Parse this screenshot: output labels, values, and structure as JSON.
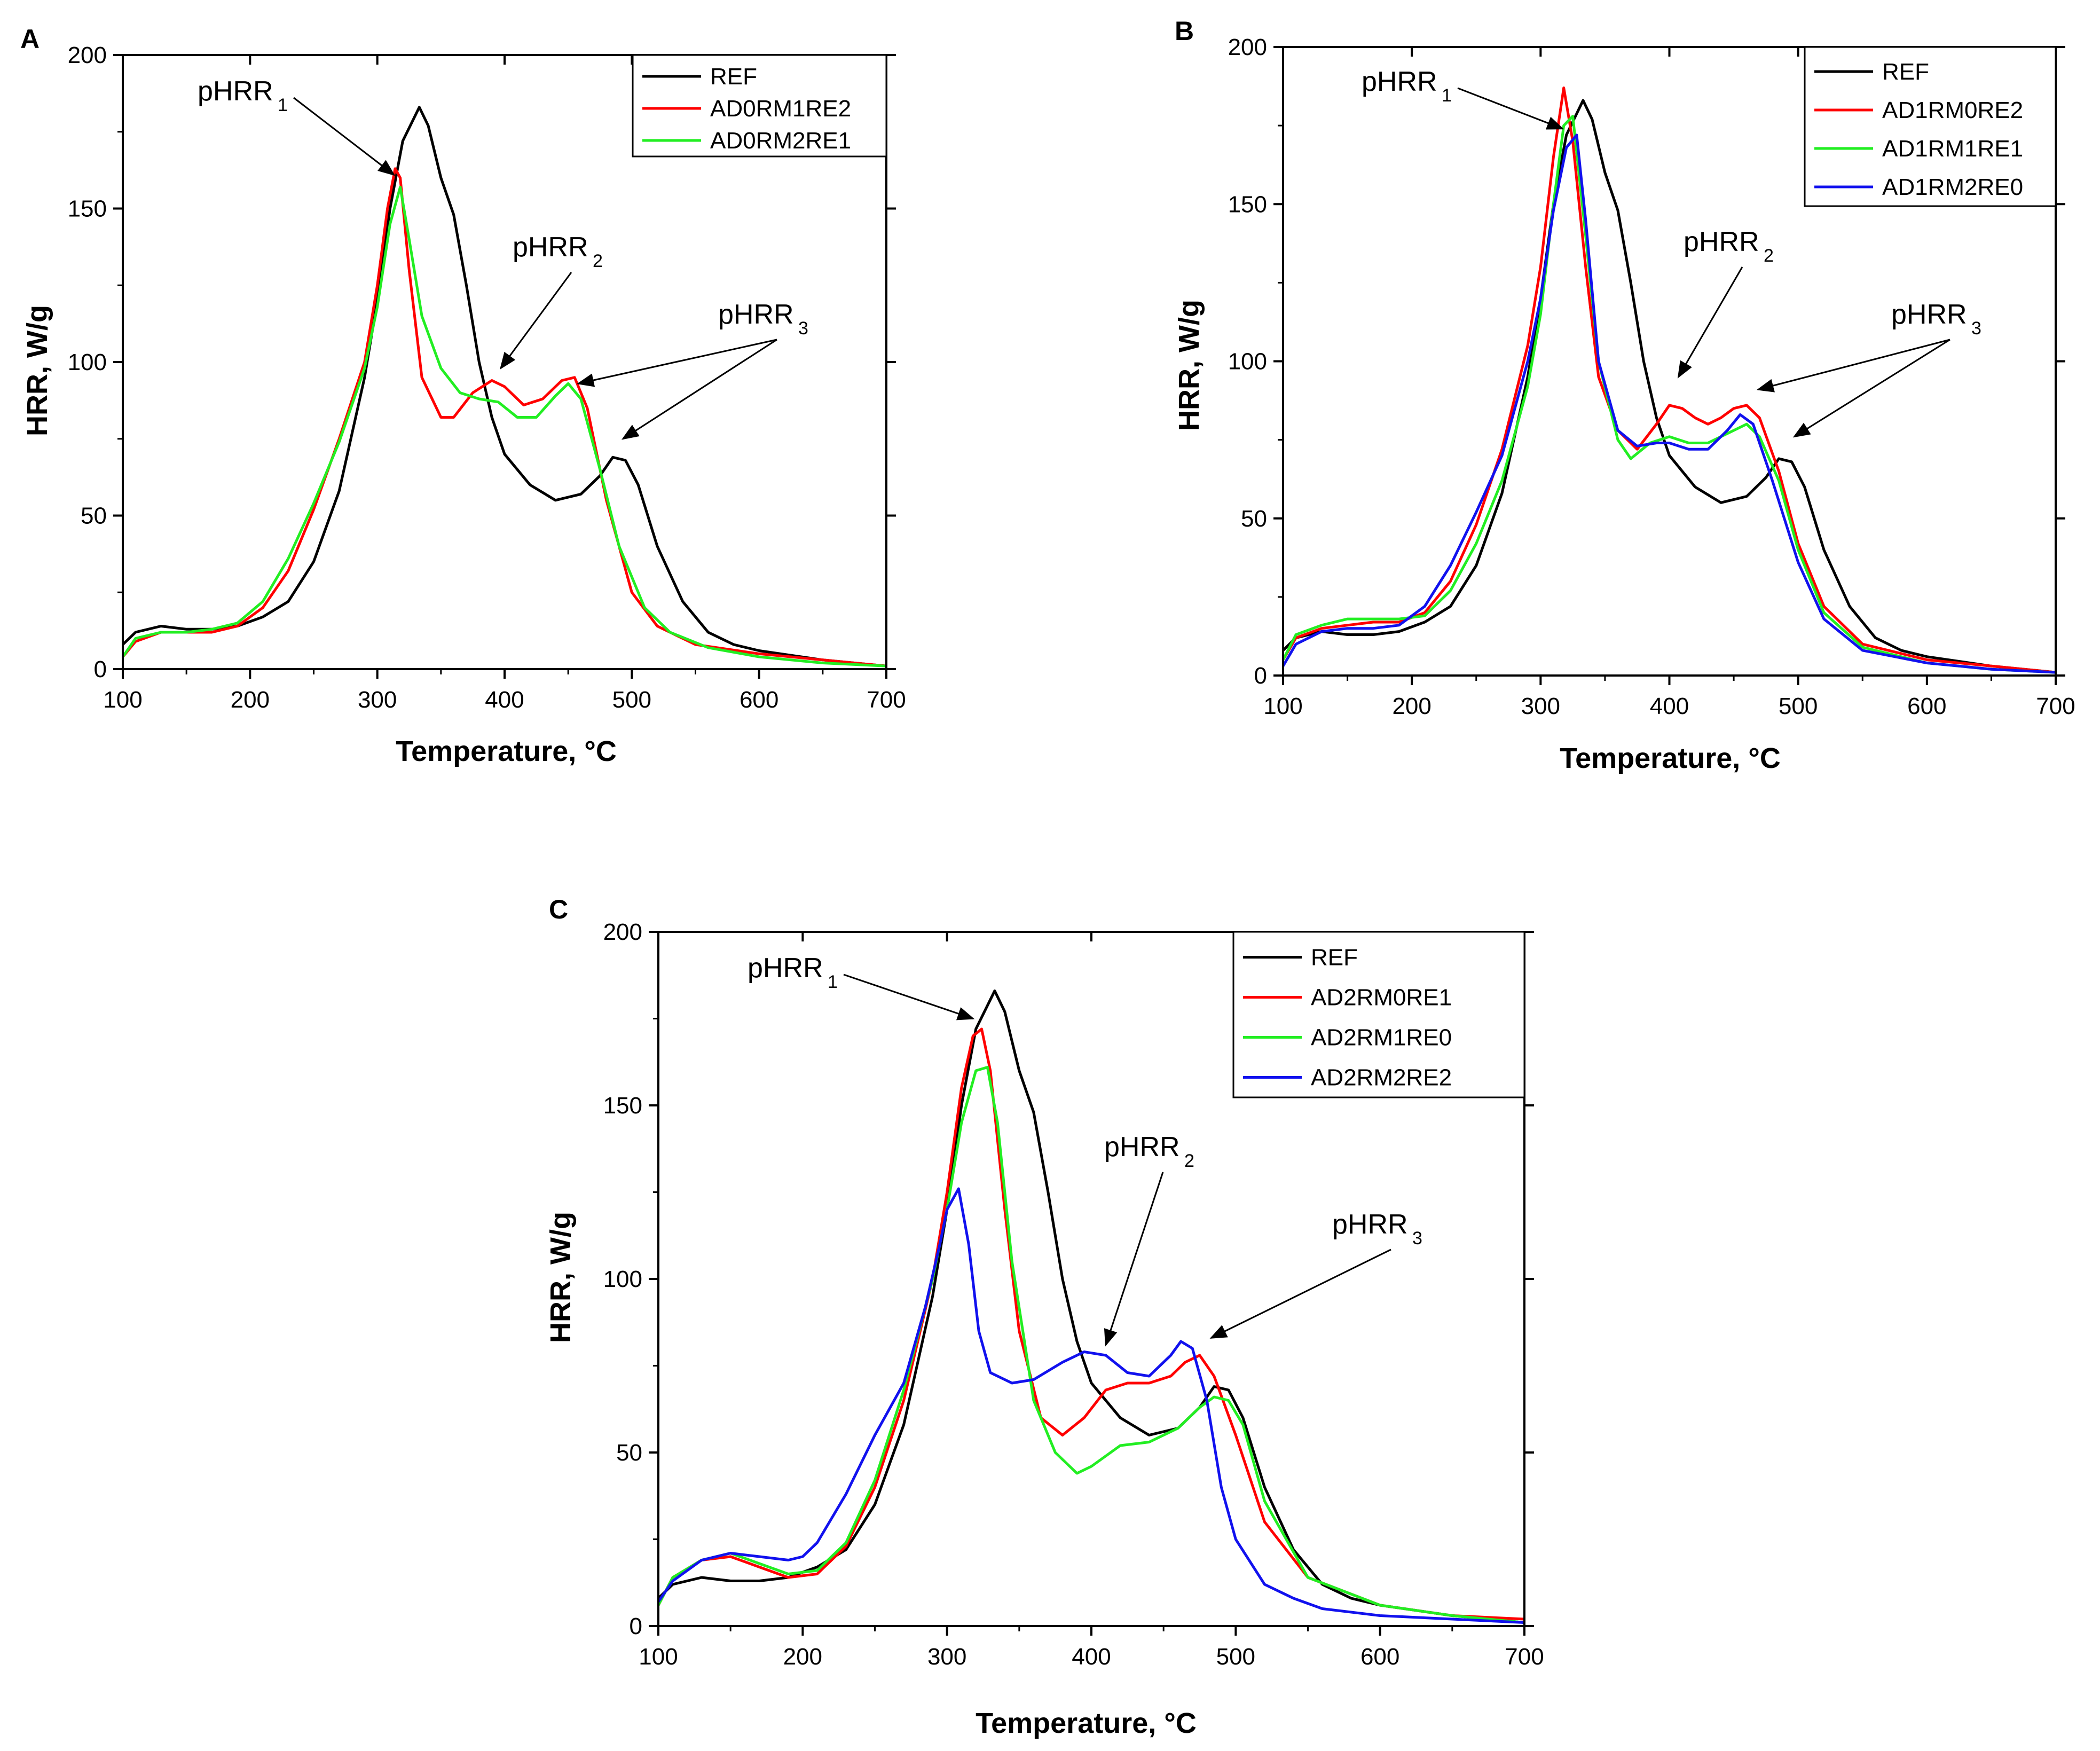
{
  "figure": {
    "panels": [
      "A",
      "B",
      "C"
    ]
  },
  "chart_data": [
    {
      "panel": "A",
      "type": "line",
      "title": "",
      "xlabel": "Temperature, °C",
      "ylabel": "HRR, W/g",
      "xlim": [
        100,
        700
      ],
      "ylim": [
        0,
        200
      ],
      "xticks": [
        100,
        200,
        300,
        400,
        500,
        600,
        700
      ],
      "yticks": [
        0,
        50,
        100,
        150,
        200
      ],
      "legend_position": "top-right",
      "annotations": [
        {
          "text": "pHRR",
          "sub": "1",
          "targets": [
            [
              313,
              161
            ]
          ]
        },
        {
          "text": "pHRR",
          "sub": "2",
          "targets": [
            [
              397,
              98
            ]
          ]
        },
        {
          "text": "pHRR",
          "sub": "3",
          "targets": [
            [
              458,
              93
            ],
            [
              493,
              75
            ]
          ]
        }
      ],
      "series": [
        {
          "name": "REF",
          "color": "#000000",
          "x": [
            100,
            110,
            130,
            150,
            170,
            190,
            210,
            230,
            250,
            270,
            290,
            300,
            310,
            320,
            333,
            340,
            350,
            360,
            370,
            380,
            390,
            400,
            420,
            440,
            460,
            475,
            485,
            495,
            505,
            520,
            540,
            560,
            580,
            600,
            650,
            700
          ],
          "y": [
            8,
            12,
            14,
            13,
            13,
            14,
            17,
            22,
            35,
            58,
            95,
            120,
            150,
            172,
            183,
            177,
            160,
            148,
            125,
            100,
            82,
            70,
            60,
            55,
            57,
            63,
            69,
            68,
            60,
            40,
            22,
            12,
            8,
            6,
            3,
            1
          ]
        },
        {
          "name": "AD0RM1RE2",
          "color": "#ff0000",
          "x": [
            100,
            110,
            130,
            150,
            170,
            190,
            210,
            230,
            250,
            270,
            290,
            300,
            308,
            314,
            318,
            325,
            335,
            350,
            360,
            375,
            390,
            400,
            415,
            430,
            445,
            455,
            465,
            480,
            500,
            520,
            550,
            600,
            650,
            700
          ],
          "y": [
            4,
            9,
            12,
            12,
            12,
            14,
            20,
            32,
            52,
            75,
            100,
            125,
            150,
            163,
            160,
            130,
            95,
            82,
            82,
            90,
            94,
            92,
            86,
            88,
            94,
            95,
            85,
            55,
            25,
            14,
            8,
            5,
            3,
            1
          ]
        },
        {
          "name": "AD0RM2RE1",
          "color": "#22ee22",
          "x": [
            100,
            110,
            130,
            150,
            170,
            190,
            210,
            230,
            250,
            270,
            290,
            300,
            310,
            318,
            325,
            335,
            350,
            365,
            380,
            395,
            410,
            425,
            440,
            450,
            460,
            475,
            490,
            510,
            530,
            560,
            600,
            650,
            700
          ],
          "y": [
            4,
            10,
            12,
            12,
            13,
            15,
            22,
            36,
            54,
            74,
            98,
            118,
            145,
            157,
            140,
            115,
            98,
            90,
            88,
            87,
            82,
            82,
            89,
            93,
            88,
            65,
            40,
            20,
            12,
            7,
            4,
            2,
            1
          ]
        }
      ]
    },
    {
      "panel": "B",
      "type": "line",
      "title": "",
      "xlabel": "Temperature, °C",
      "ylabel": "HRR, W/g",
      "xlim": [
        100,
        700
      ],
      "ylim": [
        0,
        200
      ],
      "xticks": [
        100,
        200,
        300,
        400,
        500,
        600,
        700
      ],
      "yticks": [
        0,
        50,
        100,
        150,
        200
      ],
      "legend_position": "top-right",
      "annotations": [
        {
          "text": "pHRR",
          "sub": "1",
          "targets": [
            [
              317,
              174
            ]
          ]
        },
        {
          "text": "pHRR",
          "sub": "2",
          "targets": [
            [
              407,
              95
            ]
          ]
        },
        {
          "text": "pHRR",
          "sub": "3",
          "targets": [
            [
              469,
              91
            ],
            [
              497,
              76
            ]
          ]
        }
      ],
      "series": [
        {
          "name": "REF",
          "color": "#000000",
          "x": [
            100,
            110,
            130,
            150,
            170,
            190,
            210,
            230,
            250,
            270,
            290,
            300,
            310,
            320,
            333,
            340,
            350,
            360,
            370,
            380,
            390,
            400,
            420,
            440,
            460,
            475,
            485,
            495,
            505,
            520,
            540,
            560,
            580,
            600,
            650,
            700
          ],
          "y": [
            8,
            12,
            14,
            13,
            13,
            14,
            17,
            22,
            35,
            58,
            95,
            120,
            150,
            172,
            183,
            177,
            160,
            148,
            125,
            100,
            82,
            70,
            60,
            55,
            57,
            63,
            69,
            68,
            60,
            40,
            22,
            12,
            8,
            6,
            3,
            1
          ]
        },
        {
          "name": "AD1RM0RE2",
          "color": "#ff0000",
          "x": [
            100,
            110,
            130,
            150,
            170,
            190,
            210,
            230,
            250,
            270,
            290,
            300,
            310,
            318,
            325,
            335,
            345,
            360,
            375,
            390,
            400,
            410,
            420,
            430,
            440,
            450,
            460,
            470,
            485,
            500,
            520,
            550,
            600,
            650,
            700
          ],
          "y": [
            5,
            12,
            15,
            16,
            17,
            17,
            20,
            30,
            48,
            72,
            105,
            130,
            165,
            187,
            170,
            130,
            95,
            78,
            72,
            80,
            86,
            85,
            82,
            80,
            82,
            85,
            86,
            82,
            65,
            42,
            22,
            10,
            5,
            3,
            1
          ]
        },
        {
          "name": "AD1RM1RE1",
          "color": "#22ee22",
          "x": [
            100,
            110,
            130,
            150,
            170,
            190,
            210,
            230,
            250,
            270,
            290,
            300,
            310,
            318,
            325,
            335,
            345,
            360,
            370,
            385,
            400,
            415,
            430,
            445,
            460,
            470,
            485,
            500,
            520,
            550,
            600,
            650,
            700
          ],
          "y": [
            5,
            13,
            16,
            18,
            18,
            18,
            19,
            27,
            42,
            62,
            92,
            115,
            150,
            175,
            178,
            140,
            100,
            75,
            69,
            74,
            76,
            74,
            74,
            77,
            80,
            76,
            62,
            40,
            20,
            9,
            4,
            2,
            1
          ]
        },
        {
          "name": "AD1RM2RE0",
          "color": "#1111ee",
          "x": [
            100,
            110,
            130,
            150,
            170,
            190,
            210,
            230,
            250,
            270,
            290,
            300,
            310,
            320,
            328,
            335,
            345,
            360,
            375,
            390,
            400,
            415,
            430,
            445,
            455,
            465,
            480,
            500,
            520,
            550,
            600,
            650,
            700
          ],
          "y": [
            3,
            10,
            14,
            15,
            15,
            16,
            22,
            35,
            52,
            70,
            100,
            120,
            148,
            168,
            172,
            145,
            100,
            78,
            73,
            74,
            74,
            72,
            72,
            78,
            83,
            80,
            62,
            36,
            18,
            8,
            4,
            2,
            1
          ]
        }
      ]
    },
    {
      "panel": "C",
      "type": "line",
      "title": "",
      "xlabel": "Temperature, °C",
      "ylabel": "HRR, W/g",
      "xlim": [
        100,
        700
      ],
      "ylim": [
        0,
        200
      ],
      "xticks": [
        100,
        200,
        300,
        400,
        500,
        600,
        700
      ],
      "yticks": [
        0,
        50,
        100,
        150,
        200
      ],
      "legend_position": "top-right",
      "annotations": [
        {
          "text": "pHRR",
          "sub": "1",
          "targets": [
            [
              318,
              175
            ]
          ]
        },
        {
          "text": "pHRR",
          "sub": "2",
          "targets": [
            [
              410,
              81
            ]
          ]
        },
        {
          "text": "pHRR",
          "sub": "3",
          "targets": [
            [
              483,
              83
            ]
          ]
        }
      ],
      "series": [
        {
          "name": "REF",
          "color": "#000000",
          "x": [
            100,
            110,
            130,
            150,
            170,
            190,
            210,
            230,
            250,
            270,
            290,
            300,
            310,
            320,
            333,
            340,
            350,
            360,
            370,
            380,
            390,
            400,
            420,
            440,
            460,
            475,
            485,
            495,
            505,
            520,
            540,
            560,
            580,
            600,
            650,
            700
          ],
          "y": [
            8,
            12,
            14,
            13,
            13,
            14,
            17,
            22,
            35,
            58,
            95,
            120,
            150,
            172,
            183,
            177,
            160,
            148,
            125,
            100,
            82,
            70,
            60,
            55,
            57,
            63,
            69,
            68,
            60,
            40,
            22,
            12,
            8,
            6,
            3,
            1
          ]
        },
        {
          "name": "AD2RM0RE1",
          "color": "#ff0000",
          "x": [
            100,
            110,
            130,
            150,
            170,
            190,
            210,
            230,
            250,
            270,
            290,
            300,
            310,
            318,
            324,
            330,
            340,
            350,
            365,
            380,
            395,
            410,
            425,
            440,
            455,
            465,
            475,
            485,
            500,
            520,
            550,
            600,
            650,
            700
          ],
          "y": [
            6,
            14,
            19,
            20,
            17,
            14,
            15,
            23,
            40,
            65,
            100,
            125,
            155,
            170,
            172,
            160,
            120,
            85,
            60,
            55,
            60,
            68,
            70,
            70,
            72,
            76,
            78,
            72,
            55,
            30,
            14,
            6,
            3,
            2
          ]
        },
        {
          "name": "AD2RM1RE0",
          "color": "#22ee22",
          "x": [
            100,
            110,
            130,
            150,
            170,
            190,
            210,
            230,
            250,
            270,
            290,
            300,
            310,
            320,
            328,
            335,
            345,
            360,
            375,
            390,
            400,
            420,
            440,
            460,
            475,
            485,
            495,
            505,
            520,
            550,
            600,
            650,
            700
          ],
          "y": [
            6,
            14,
            19,
            21,
            18,
            15,
            16,
            24,
            42,
            68,
            100,
            120,
            145,
            160,
            161,
            145,
            105,
            65,
            50,
            44,
            46,
            52,
            53,
            57,
            63,
            66,
            65,
            58,
            36,
            14,
            6,
            3,
            1
          ]
        },
        {
          "name": "AD2RM2RE2",
          "color": "#1111ee",
          "x": [
            100,
            110,
            130,
            150,
            170,
            190,
            200,
            210,
            230,
            250,
            270,
            285,
            295,
            300,
            308,
            315,
            322,
            330,
            345,
            360,
            380,
            395,
            410,
            425,
            440,
            455,
            462,
            470,
            480,
            490,
            500,
            520,
            540,
            560,
            600,
            650,
            700
          ],
          "y": [
            7,
            13,
            19,
            21,
            20,
            19,
            20,
            24,
            38,
            55,
            70,
            92,
            110,
            120,
            126,
            110,
            85,
            73,
            70,
            71,
            76,
            79,
            78,
            73,
            72,
            78,
            82,
            80,
            65,
            40,
            25,
            12,
            8,
            5,
            3,
            2,
            1
          ]
        }
      ]
    }
  ]
}
